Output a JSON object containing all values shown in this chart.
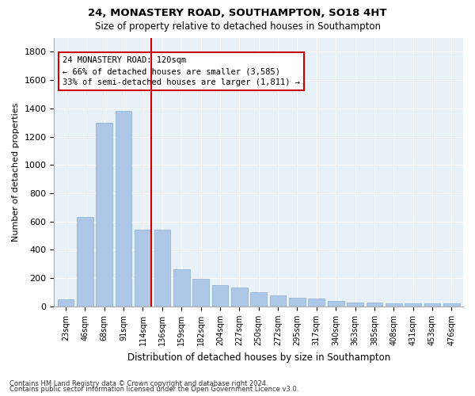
{
  "title1": "24, MONASTERY ROAD, SOUTHAMPTON, SO18 4HT",
  "title2": "Size of property relative to detached houses in Southampton",
  "xlabel": "Distribution of detached houses by size in Southampton",
  "ylabel": "Number of detached properties",
  "categories": [
    "23sqm",
    "46sqm",
    "68sqm",
    "91sqm",
    "114sqm",
    "136sqm",
    "159sqm",
    "182sqm",
    "204sqm",
    "227sqm",
    "250sqm",
    "272sqm",
    "295sqm",
    "317sqm",
    "340sqm",
    "363sqm",
    "385sqm",
    "408sqm",
    "431sqm",
    "453sqm",
    "476sqm"
  ],
  "values": [
    50,
    630,
    1300,
    1380,
    540,
    540,
    265,
    195,
    150,
    135,
    100,
    80,
    60,
    55,
    40,
    28,
    28,
    20,
    20,
    20,
    20
  ],
  "bar_color": "#aec6e8",
  "bar_edge_color": "#8ab0d0",
  "background_color": "#e8f0f8",
  "grid_color": "#ffffff",
  "red_line_x": 4.42,
  "annotation_text": "24 MONASTERY ROAD: 120sqm\n← 66% of detached houses are smaller (3,585)\n33% of semi-detached houses are larger (1,811) →",
  "annotation_box_facecolor": "#ffffff",
  "annotation_box_edgecolor": "#cc0000",
  "footer1": "Contains HM Land Registry data © Crown copyright and database right 2024.",
  "footer2": "Contains public sector information licensed under the Open Government Licence v3.0."
}
